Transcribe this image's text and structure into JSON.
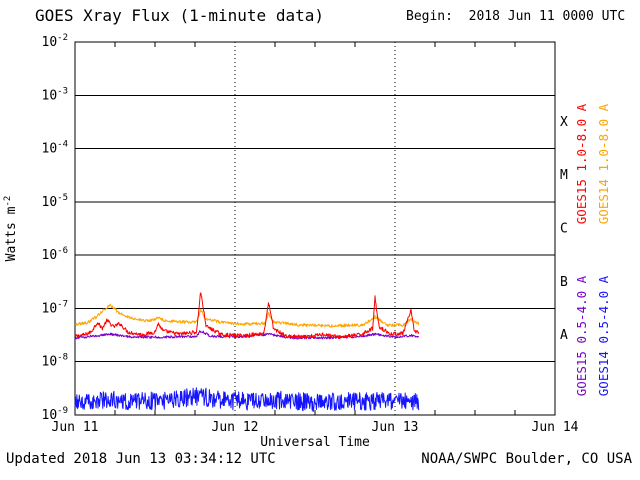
{
  "footer": {
    "updated": "Updated 2018 Jun 13 03:34:12 UTC",
    "source": "NOAA/SWPC Boulder, CO USA"
  },
  "chart_data": {
    "type": "line",
    "title": "GOES Xray Flux (1-minute data)",
    "begin": "Begin:  2018 Jun 11 0000 UTC",
    "xlabel": "Universal Time",
    "ylabel": {
      "base": "Watts m",
      "exponent": "-2"
    },
    "x_ticks": [
      "Jun 11",
      "Jun 12",
      "Jun 13",
      "Jun 14"
    ],
    "x_range_days": [
      0,
      3
    ],
    "y_axis": {
      "scale": "log",
      "tick_base": "10",
      "tick_exponents": [
        -2,
        -3,
        -4,
        -5,
        -6,
        -7,
        -8,
        -9
      ]
    },
    "flare_classes": [
      {
        "label": "X",
        "mid_exponent": -3.5
      },
      {
        "label": "M",
        "mid_exponent": -4.5
      },
      {
        "label": "C",
        "mid_exponent": -5.5
      },
      {
        "label": "B",
        "mid_exponent": -6.5
      },
      {
        "label": "A",
        "mid_exponent": -7.5
      }
    ],
    "grid": {
      "horizontal": "solid",
      "vertical": "dotted",
      "vertical_positions_days": [
        1,
        2
      ]
    },
    "series": [
      {
        "id": "goes15-long",
        "name": "GOES15 1.0-8.0 A",
        "color": "#ff0000",
        "noise_dex": 0.035,
        "end_day": 2.15,
        "keypoints_day_flux": [
          [
            0.0,
            3e-08
          ],
          [
            0.06,
            3.2e-08
          ],
          [
            0.1,
            3.6e-08
          ],
          [
            0.14,
            5.5e-08
          ],
          [
            0.17,
            4.2e-08
          ],
          [
            0.2,
            6e-08
          ],
          [
            0.24,
            4.5e-08
          ],
          [
            0.28,
            5.2e-08
          ],
          [
            0.33,
            3.6e-08
          ],
          [
            0.42,
            3.2e-08
          ],
          [
            0.5,
            3.6e-08
          ],
          [
            0.52,
            5.2e-08
          ],
          [
            0.55,
            3.8e-08
          ],
          [
            0.65,
            3.3e-08
          ],
          [
            0.76,
            3.6e-08
          ],
          [
            0.785,
            2.1e-07
          ],
          [
            0.82,
            4.6e-08
          ],
          [
            0.92,
            3.2e-08
          ],
          [
            1.05,
            3.1e-08
          ],
          [
            1.18,
            3.4e-08
          ],
          [
            1.21,
            1.3e-07
          ],
          [
            1.24,
            4.2e-08
          ],
          [
            1.32,
            3e-08
          ],
          [
            1.45,
            2.9e-08
          ],
          [
            1.55,
            3.3e-08
          ],
          [
            1.65,
            2.9e-08
          ],
          [
            1.78,
            3.2e-08
          ],
          [
            1.86,
            4.2e-08
          ],
          [
            1.875,
            1.6e-07
          ],
          [
            1.9,
            4.6e-08
          ],
          [
            1.97,
            3.3e-08
          ],
          [
            2.05,
            3.4e-08
          ],
          [
            2.1,
            9e-08
          ],
          [
            2.12,
            3.8e-08
          ],
          [
            2.15,
            3.6e-08
          ]
        ]
      },
      {
        "id": "goes14-long",
        "name": "GOES14 1.0-8.0 A",
        "color": "#ffa500",
        "noise_dex": 0.028,
        "end_day": 2.15,
        "keypoints_day_flux": [
          [
            0.0,
            5e-08
          ],
          [
            0.08,
            5.4e-08
          ],
          [
            0.13,
            6.8e-08
          ],
          [
            0.18,
            9.5e-08
          ],
          [
            0.22,
            1.15e-07
          ],
          [
            0.28,
            8e-08
          ],
          [
            0.36,
            6.4e-08
          ],
          [
            0.46,
            5.8e-08
          ],
          [
            0.52,
            6.6e-08
          ],
          [
            0.56,
            5.9e-08
          ],
          [
            0.66,
            5.6e-08
          ],
          [
            0.76,
            5.6e-08
          ],
          [
            0.785,
            9.5e-08
          ],
          [
            0.82,
            6.2e-08
          ],
          [
            0.95,
            5.3e-08
          ],
          [
            1.1,
            5.1e-08
          ],
          [
            1.19,
            5.3e-08
          ],
          [
            1.21,
            8e-08
          ],
          [
            1.24,
            5.6e-08
          ],
          [
            1.4,
            4.9e-08
          ],
          [
            1.6,
            4.7e-08
          ],
          [
            1.8,
            4.9e-08
          ],
          [
            1.875,
            7e-08
          ],
          [
            1.95,
            4.9e-08
          ],
          [
            2.05,
            4.9e-08
          ],
          [
            2.1,
            6.3e-08
          ],
          [
            2.15,
            5.1e-08
          ]
        ]
      },
      {
        "id": "goes15-short",
        "name": "GOES15 0.5-4.0 A",
        "color": "#7a00cc",
        "noise_dex": 0.022,
        "end_day": 2.15,
        "keypoints_day_flux": [
          [
            0.0,
            2.8e-08
          ],
          [
            0.15,
            3.1e-08
          ],
          [
            0.22,
            3.3e-08
          ],
          [
            0.35,
            2.9e-08
          ],
          [
            0.55,
            2.9e-08
          ],
          [
            0.76,
            3e-08
          ],
          [
            0.785,
            3.8e-08
          ],
          [
            0.85,
            3e-08
          ],
          [
            1.05,
            2.9e-08
          ],
          [
            1.21,
            3.3e-08
          ],
          [
            1.35,
            2.8e-08
          ],
          [
            1.55,
            2.8e-08
          ],
          [
            1.75,
            2.9e-08
          ],
          [
            1.875,
            3.3e-08
          ],
          [
            2.0,
            2.9e-08
          ],
          [
            2.1,
            3.1e-08
          ],
          [
            2.15,
            2.9e-08
          ]
        ]
      },
      {
        "id": "goes14-short",
        "name": "GOES14 0.5-4.0 A",
        "color": "#1414ff",
        "noise_dex": 0.17,
        "end_day": 2.15,
        "keypoints_day_flux": [
          [
            0.0,
            1.8e-09
          ],
          [
            0.2,
            2e-09
          ],
          [
            0.4,
            1.8e-09
          ],
          [
            0.6,
            1.9e-09
          ],
          [
            0.78,
            2.3e-09
          ],
          [
            0.9,
            1.9e-09
          ],
          [
            1.1,
            1.8e-09
          ],
          [
            1.3,
            1.9e-09
          ],
          [
            1.5,
            1.7e-09
          ],
          [
            1.7,
            1.8e-09
          ],
          [
            1.9,
            1.8e-09
          ],
          [
            2.05,
            1.9e-09
          ],
          [
            2.15,
            1.8e-09
          ]
        ]
      }
    ]
  }
}
